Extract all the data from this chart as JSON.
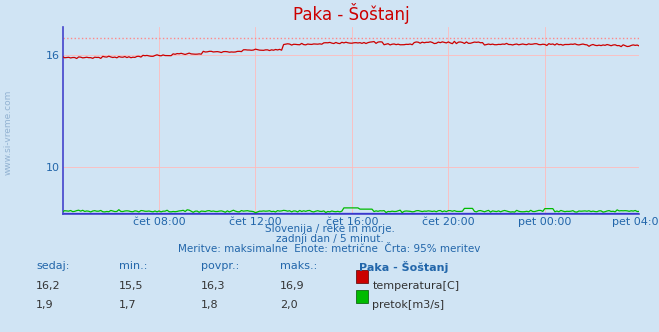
{
  "title": "Paka - Šoštanj",
  "background_color": "#d0e4f4",
  "plot_bg_color": "#d0e4f4",
  "grid_color_h": "#ffbbbb",
  "grid_color_v": "#ffbbbb",
  "ylim": [
    7.5,
    17.5
  ],
  "ytick_vals": [
    10,
    16
  ],
  "ytick_labels": [
    "10",
    "16"
  ],
  "xlabel_ticks": [
    "čet 08:00",
    "čet 12:00",
    "čet 16:00",
    "čet 20:00",
    "pet 00:00",
    "pet 04:00"
  ],
  "subtitle_lines": [
    "Slovenija / reke in morje.",
    "zadnji dan / 5 minut.",
    "Meritve: maksimalne  Enote: metrične  Črta: 95% meritev"
  ],
  "table_headers": [
    "sedaj:",
    "min.:",
    "povpr.:",
    "maks.:",
    "Paka - Šoštanj"
  ],
  "table_row1_vals": [
    "16,2",
    "15,5",
    "16,3",
    "16,9"
  ],
  "table_row1_label": "temperatura[C]",
  "table_row2_vals": [
    "1,9",
    "1,7",
    "1,8",
    "2,0"
  ],
  "table_row2_label": "pretok[m3/s]",
  "temp_color": "#cc0000",
  "flow_color": "#00bb00",
  "level_color": "#0000dd",
  "max_line_color": "#ff8888",
  "axis_line_color": "#4444cc",
  "temp_min": 15.5,
  "temp_max": 16.9,
  "flow_min": 1.7,
  "flow_max": 2.0,
  "n_points": 288,
  "title_fontsize": 12,
  "label_color": "#2266aa",
  "label_fontsize": 8,
  "watermark_text": "www.si-vreme.com",
  "watermark_color": "#88aacc"
}
